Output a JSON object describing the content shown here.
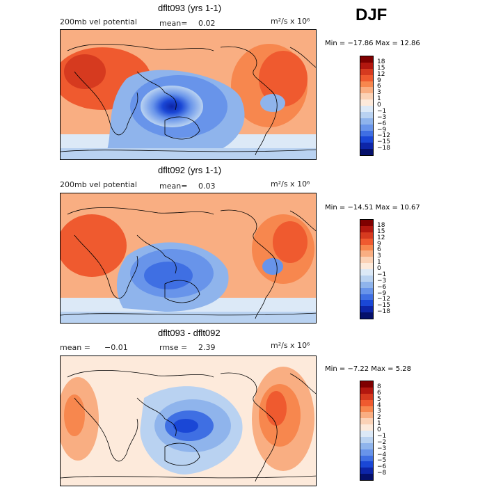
{
  "season": "DJF",
  "panels": [
    {
      "title": "dflt093 (yrs 1-1)",
      "left_label": "200mb vel potential",
      "stat1_label": "mean=",
      "stat1_value": "0.02",
      "units": "m²/s x 10⁶",
      "minmax": "Min = −17.86 Max =  12.86",
      "levels": [
        "18",
        "15",
        "12",
        "9",
        "6",
        "3",
        "1",
        "0",
        "−1",
        "−3",
        "−6",
        "−9",
        "−12",
        "−15",
        "−18"
      ]
    },
    {
      "title": "dflt092 (yrs 1-1)",
      "left_label": "200mb vel potential",
      "stat1_label": "mean=",
      "stat1_value": "0.03",
      "units": "m²/s x 10⁶",
      "minmax": "Min = −14.51 Max =  10.67",
      "levels": [
        "18",
        "15",
        "12",
        "9",
        "6",
        "3",
        "1",
        "0",
        "−1",
        "−3",
        "−6",
        "−9",
        "−12",
        "−15",
        "−18"
      ]
    },
    {
      "title": "dflt093 - dflt092",
      "left_label": "mean =",
      "left_value": "−0.01",
      "stat1_label": "rmse =",
      "stat1_value": "2.39",
      "units": "m²/s x 10⁶",
      "minmax": "Min = −7.22 Max =   5.28",
      "levels": [
        "8",
        "6",
        "5",
        "4",
        "3",
        "2",
        "1",
        "0",
        "−1",
        "−2",
        "−3",
        "−4",
        "−5",
        "−6",
        "−8"
      ]
    }
  ],
  "colors": {
    "scale": [
      "#7f0000",
      "#b3170f",
      "#d63a1f",
      "#ef5a2f",
      "#f7874e",
      "#f9ae82",
      "#fbd2b6",
      "#fdeadb",
      "#dce9f7",
      "#b9d2f1",
      "#8fb4ec",
      "#6894ea",
      "#3f6fe3",
      "#1a47d6",
      "#0d25a8",
      "#05106b"
    ]
  }
}
